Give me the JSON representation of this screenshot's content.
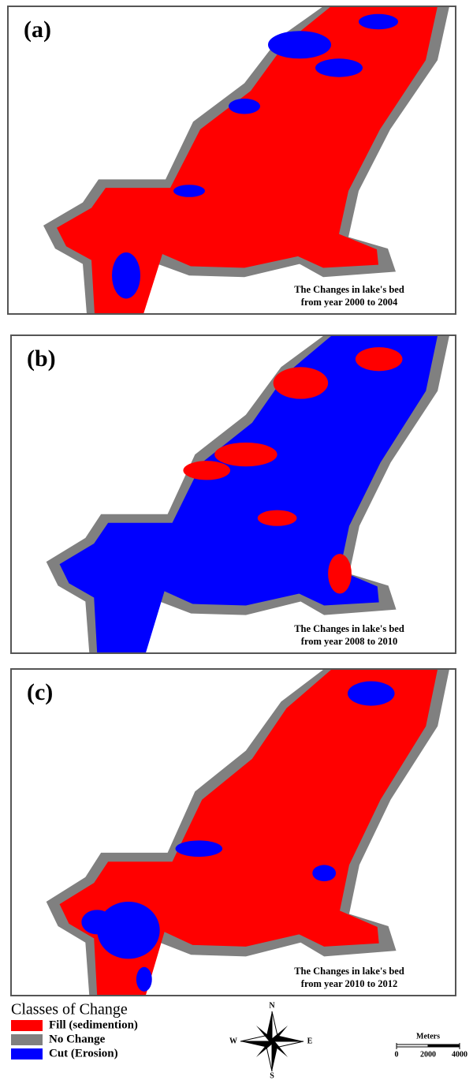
{
  "panels": [
    {
      "label": "(a)",
      "caption": [
        "The Changes in lake's bed",
        "from year 2000 to 2004"
      ]
    },
    {
      "label": "(b)",
      "caption": [
        "The Changes in lake's bed",
        "from year 2008 to 2010"
      ]
    },
    {
      "label": "(c)",
      "caption": [
        "The Changes in lake's bed",
        "from year 2010 to 2012"
      ]
    }
  ],
  "legend": {
    "title": "Classes of Change",
    "items": [
      {
        "label": "Fill (sedimention)",
        "color": "#ff0000"
      },
      {
        "label": "No Change",
        "color": "#808080"
      },
      {
        "label": "Cut (Erosion)",
        "color": "#0000ff"
      }
    ]
  },
  "compass": {
    "north": "N",
    "south": "S",
    "east": "E",
    "west": "W"
  },
  "scale_bar": {
    "unit": "Meters",
    "labels": [
      "0",
      "2000",
      "4000"
    ]
  }
}
